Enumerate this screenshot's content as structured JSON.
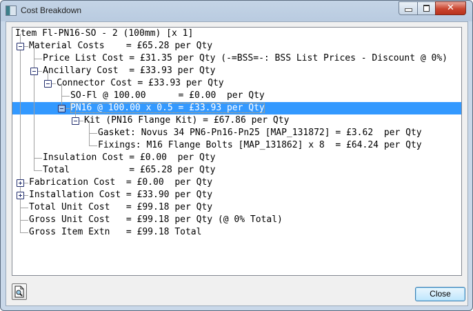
{
  "window": {
    "title": "Cost Breakdown",
    "controls": [
      "minimize",
      "maximize",
      "close"
    ]
  },
  "tree": {
    "selected_index": 6,
    "rows": [
      {
        "level": 0,
        "text": "Item Fl-PN16-SO - 2 (100mm) [x 1]"
      },
      {
        "level": 1,
        "toggle": "expanded",
        "text": "Material Costs    = £65.28 per Qty"
      },
      {
        "level": 2,
        "text": "Price List Cost = £31.35 per Qty (-=BSS=-: BSS List Prices - Discount @ 0%)"
      },
      {
        "level": 2,
        "toggle": "expanded",
        "text": "Ancillary Cost  = £33.93 per Qty"
      },
      {
        "level": 3,
        "toggle": "expanded",
        "text": "Connector Cost = £33.93 per Qty"
      },
      {
        "level": 4,
        "text": "SO-Fl @ 100.00      = £0.00  per Qty"
      },
      {
        "level": 4,
        "toggle": "expanded",
        "text": "PN16 @ 100.00 x 0.5 = £33.93 per Qty"
      },
      {
        "level": 5,
        "toggle": "expanded",
        "text": "Kit (PN16 Flange Kit) = £67.86 per Qty"
      },
      {
        "level": 6,
        "text": "Gasket: Novus 34 PN6-Pn16-Pn25 [MAP_131872] = £3.62  per Qty"
      },
      {
        "level": 6,
        "text": "Fixings: M16 Flange Bolts [MAP_131862] x 8  = £64.24 per Qty"
      },
      {
        "level": 2,
        "text": "Insulation Cost = £0.00  per Qty"
      },
      {
        "level": 2,
        "text": "Total           = £65.28 per Qty"
      },
      {
        "level": 1,
        "toggle": "collapsed",
        "text": "Fabrication Cost  = £0.00  per Qty"
      },
      {
        "level": 1,
        "toggle": "collapsed",
        "text": "Installation Cost = £33.90 per Qty"
      },
      {
        "level": 1,
        "text": "Total Unit Cost   = £99.18 per Qty"
      },
      {
        "level": 1,
        "text": "Gross Unit Cost   = £99.18 per Qty (@ 0% Total)"
      },
      {
        "level": 1,
        "text": "Gross Item Extn   = £99.18 Total"
      }
    ]
  },
  "footer": {
    "preview_icon": "print-preview-icon",
    "close_label": "Close"
  },
  "colors": {
    "selection": "#3399ff",
    "tree_lines": "#a0a0a0"
  }
}
